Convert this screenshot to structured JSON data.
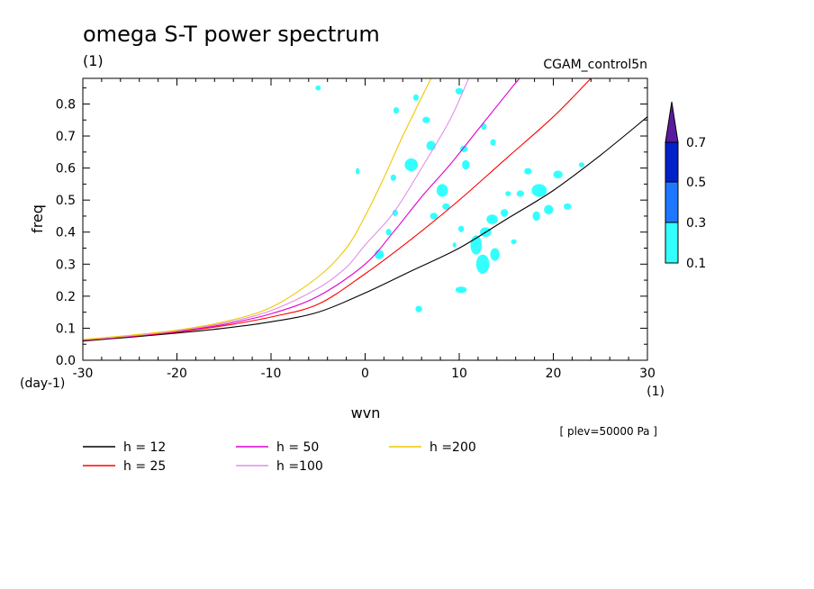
{
  "chart_data": {
    "type": "contour_line",
    "title": "omega S-T power spectrum",
    "subtitle": "(1)",
    "dataset_label": "CGAM_control5n",
    "level_note": "[ plev=50000 Pa ]",
    "xlabel": "wvn",
    "ylabel": "freq",
    "x_unit": "(1)",
    "y_unit": "(day-1)",
    "xlim": [
      -30,
      30
    ],
    "ylim": [
      0,
      0.88
    ],
    "x_ticks": [
      -30,
      -20,
      -10,
      0,
      10,
      20,
      30
    ],
    "x_tick_labels": [
      "-30",
      "-20",
      "-10",
      "0",
      "10",
      "20",
      "30"
    ],
    "y_ticks": [
      0,
      0.1,
      0.2,
      0.3,
      0.4,
      0.5,
      0.6,
      0.7,
      0.8
    ],
    "y_tick_labels": [
      "0.0",
      "0.1",
      "0.2",
      "0.3",
      "0.4",
      "0.5",
      "0.6",
      "0.7",
      "0.8"
    ],
    "grid": false,
    "colorbar": {
      "levels": [
        0.1,
        0.3,
        0.5,
        0.7
      ],
      "labels": [
        "0.1",
        "0.3",
        "0.5",
        "0.7"
      ],
      "colors": [
        "#33ffff",
        "#1e78ff",
        "#0022c8",
        "#5a1aa0"
      ],
      "extend": "max"
    },
    "contour_fill": {
      "level": 0.1,
      "color": "#33ffff"
    },
    "series": [
      {
        "name": "h = 12",
        "color": "#000000",
        "x": [
          -30,
          -25,
          -20,
          -15,
          -10,
          -5,
          0,
          5,
          10,
          15,
          20,
          25,
          30
        ],
        "y": [
          0.06,
          0.072,
          0.085,
          0.1,
          0.12,
          0.15,
          0.21,
          0.28,
          0.35,
          0.44,
          0.53,
          0.64,
          0.76
        ]
      },
      {
        "name": "h = 25",
        "color": "#ff0000",
        "x": [
          -30,
          -25,
          -20,
          -15,
          -10,
          -5,
          0,
          5,
          10,
          15,
          20,
          24
        ],
        "y": [
          0.062,
          0.074,
          0.088,
          0.108,
          0.135,
          0.175,
          0.27,
          0.38,
          0.5,
          0.63,
          0.76,
          0.88
        ]
      },
      {
        "name": "h = 50",
        "color": "#e000d0",
        "x": [
          -30,
          -25,
          -20,
          -15,
          -10,
          -5,
          0,
          3,
          6,
          9,
          12,
          15,
          16.4
        ],
        "y": [
          0.063,
          0.075,
          0.09,
          0.112,
          0.145,
          0.2,
          0.3,
          0.4,
          0.51,
          0.61,
          0.72,
          0.83,
          0.88
        ]
      },
      {
        "name": "h =100",
        "color": "#e08fe6",
        "x": [
          -30,
          -25,
          -20,
          -15,
          -10,
          -5,
          -2,
          0,
          3,
          6,
          9,
          11
        ],
        "y": [
          0.064,
          0.076,
          0.092,
          0.116,
          0.155,
          0.225,
          0.29,
          0.36,
          0.46,
          0.6,
          0.75,
          0.88
        ]
      },
      {
        "name": "h =200",
        "color": "#f0c800",
        "x": [
          -30,
          -25,
          -20,
          -15,
          -10,
          -5,
          -2,
          0,
          2,
          4,
          6,
          7
        ],
        "y": [
          0.065,
          0.078,
          0.094,
          0.12,
          0.165,
          0.26,
          0.35,
          0.45,
          0.57,
          0.7,
          0.82,
          0.88
        ]
      }
    ],
    "contour_blobs": [
      [
        1.5,
        0.33,
        0.5,
        0.015
      ],
      [
        5.7,
        0.16,
        0.35,
        0.01
      ],
      [
        10.2,
        0.22,
        0.6,
        0.01
      ],
      [
        11.8,
        0.36,
        0.6,
        0.03
      ],
      [
        12.5,
        0.3,
        0.7,
        0.03
      ],
      [
        13.8,
        0.33,
        0.5,
        0.02
      ],
      [
        12.8,
        0.4,
        0.6,
        0.015
      ],
      [
        13.5,
        0.44,
        0.6,
        0.015
      ],
      [
        14.8,
        0.46,
        0.4,
        0.012
      ],
      [
        18.5,
        0.53,
        0.8,
        0.02
      ],
      [
        19.5,
        0.47,
        0.5,
        0.015
      ],
      [
        18.2,
        0.45,
        0.4,
        0.015
      ],
      [
        16.5,
        0.52,
        0.4,
        0.01
      ],
      [
        17.3,
        0.59,
        0.4,
        0.01
      ],
      [
        20.5,
        0.58,
        0.5,
        0.012
      ],
      [
        21.5,
        0.48,
        0.4,
        0.01
      ],
      [
        4.9,
        0.61,
        0.7,
        0.02
      ],
      [
        7.0,
        0.67,
        0.5,
        0.015
      ],
      [
        6.5,
        0.75,
        0.4,
        0.01
      ],
      [
        10.7,
        0.61,
        0.4,
        0.015
      ],
      [
        10.5,
        0.66,
        0.4,
        0.01
      ],
      [
        8.2,
        0.53,
        0.6,
        0.02
      ],
      [
        8.6,
        0.48,
        0.4,
        0.01
      ],
      [
        7.3,
        0.45,
        0.4,
        0.01
      ],
      [
        10.2,
        0.41,
        0.3,
        0.01
      ],
      [
        3.0,
        0.57,
        0.3,
        0.01
      ],
      [
        3.2,
        0.46,
        0.3,
        0.01
      ],
      [
        2.5,
        0.4,
        0.3,
        0.01
      ],
      [
        -0.8,
        0.59,
        0.2,
        0.01
      ],
      [
        -5.0,
        0.85,
        0.3,
        0.008
      ],
      [
        10.0,
        0.84,
        0.4,
        0.01
      ],
      [
        12.6,
        0.73,
        0.3,
        0.01
      ],
      [
        13.6,
        0.68,
        0.3,
        0.01
      ],
      [
        3.3,
        0.78,
        0.3,
        0.01
      ],
      [
        15.8,
        0.37,
        0.3,
        0.008
      ],
      [
        15.2,
        0.52,
        0.3,
        0.008
      ],
      [
        12.0,
        0.35,
        0.3,
        0.01
      ],
      [
        9.5,
        0.36,
        0.2,
        0.008
      ],
      [
        5.4,
        0.82,
        0.3,
        0.01
      ],
      [
        23.0,
        0.61,
        0.3,
        0.008
      ]
    ]
  }
}
